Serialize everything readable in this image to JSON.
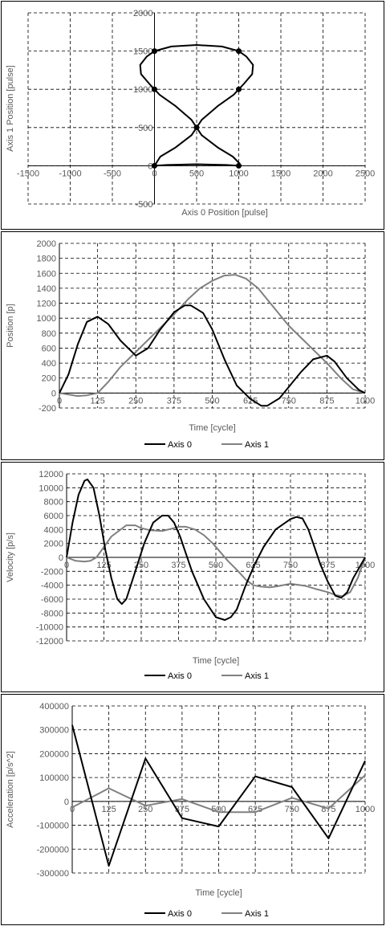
{
  "chart_data": [
    {
      "type": "scatter",
      "xlabel": "Axis 0 Position [pulse]",
      "ylabel": "Axis 1 Position [pulse]",
      "xlim": [
        -1500,
        2500
      ],
      "ylim": [
        -500,
        2000
      ],
      "xticks": [
        -1500,
        -1000,
        -500,
        0,
        500,
        1000,
        1500,
        2000,
        2500
      ],
      "yticks": [
        -500,
        0,
        500,
        1000,
        1500,
        2000
      ],
      "grid": true,
      "points": [
        [
          0,
          0
        ],
        [
          1000,
          0
        ],
        [
          500,
          500
        ],
        [
          0,
          1000
        ],
        [
          1000,
          1000
        ],
        [
          0,
          1500
        ],
        [
          1000,
          1500
        ]
      ],
      "path": [
        [
          0,
          0
        ],
        [
          150,
          10
        ],
        [
          500,
          20
        ],
        [
          850,
          10
        ],
        [
          1000,
          0
        ],
        [
          1010,
          30
        ],
        [
          930,
          120
        ],
        [
          750,
          240
        ],
        [
          560,
          400
        ],
        [
          500,
          500
        ],
        [
          440,
          600
        ],
        [
          250,
          780
        ],
        [
          60,
          930
        ],
        [
          0,
          1000
        ],
        [
          -60,
          1070
        ],
        [
          -160,
          1200
        ],
        [
          -170,
          1320
        ],
        [
          -90,
          1430
        ],
        [
          0,
          1500
        ],
        [
          200,
          1560
        ],
        [
          500,
          1580
        ],
        [
          800,
          1560
        ],
        [
          1000,
          1500
        ],
        [
          1090,
          1430
        ],
        [
          1170,
          1320
        ],
        [
          1160,
          1200
        ],
        [
          1060,
          1070
        ],
        [
          1000,
          1000
        ],
        [
          940,
          930
        ],
        [
          750,
          780
        ],
        [
          560,
          600
        ],
        [
          500,
          500
        ],
        [
          440,
          400
        ],
        [
          250,
          240
        ],
        [
          70,
          120
        ],
        [
          0,
          0
        ]
      ]
    },
    {
      "type": "line",
      "xlabel": "Time [cycle]",
      "ylabel": "Position [p]",
      "xlim": [
        0,
        1000
      ],
      "ylim": [
        -200,
        2000
      ],
      "xticks": [
        0,
        125,
        250,
        375,
        500,
        625,
        750,
        875,
        1000
      ],
      "yticks": [
        -200,
        0,
        200,
        400,
        600,
        800,
        1000,
        1200,
        1400,
        1600,
        1800,
        2000
      ],
      "grid": true,
      "legend": "bottom",
      "series": [
        {
          "name": "Axis 0",
          "color": "#000000",
          "x": [
            0,
            30,
            60,
            90,
            125,
            160,
            200,
            250,
            290,
            330,
            375,
            410,
            430,
            470,
            500,
            540,
            580,
            625,
            660,
            680,
            720,
            750,
            790,
            830,
            875,
            900,
            940,
            980,
            1000
          ],
          "y": [
            0,
            250,
            650,
            950,
            1020,
            920,
            700,
            500,
            600,
            850,
            1080,
            1170,
            1170,
            1070,
            850,
            450,
            100,
            -80,
            -170,
            -170,
            -70,
            80,
            280,
            450,
            500,
            420,
            200,
            40,
            0
          ]
        },
        {
          "name": "Axis 1",
          "color": "#808080",
          "x": [
            0,
            30,
            60,
            90,
            125,
            160,
            200,
            250,
            300,
            350,
            375,
            420,
            460,
            500,
            540,
            575,
            610,
            650,
            700,
            750,
            800,
            875,
            920,
            960,
            1000
          ],
          "y": [
            0,
            -20,
            -40,
            -30,
            0,
            150,
            350,
            550,
            750,
            950,
            1050,
            1250,
            1400,
            1500,
            1570,
            1580,
            1530,
            1400,
            1150,
            900,
            700,
            400,
            200,
            50,
            0
          ]
        }
      ]
    },
    {
      "type": "line",
      "xlabel": "Time [cycle]",
      "ylabel": "Velocity [p/s]",
      "xlim": [
        0,
        1000
      ],
      "ylim": [
        -12000,
        12000
      ],
      "xticks": [
        0,
        125,
        250,
        375,
        500,
        625,
        750,
        875,
        1000
      ],
      "yticks": [
        -12000,
        -10000,
        -8000,
        -6000,
        -4000,
        -2000,
        0,
        2000,
        4000,
        6000,
        8000,
        10000,
        12000
      ],
      "grid": true,
      "legend": "bottom",
      "series": [
        {
          "name": "Axis 0",
          "color": "#000000",
          "x": [
            0,
            20,
            40,
            60,
            70,
            90,
            110,
            130,
            150,
            170,
            185,
            200,
            230,
            260,
            290,
            320,
            340,
            360,
            380,
            420,
            460,
            500,
            530,
            550,
            570,
            600,
            630,
            660,
            700,
            750,
            770,
            790,
            810,
            830,
            850,
            875,
            900,
            920,
            940,
            960,
            1000
          ],
          "y": [
            0,
            5000,
            9000,
            11000,
            11200,
            10000,
            6000,
            1000,
            -3000,
            -6000,
            -6700,
            -6000,
            -2000,
            2000,
            5000,
            6000,
            6000,
            5000,
            3000,
            -2000,
            -6000,
            -8600,
            -9000,
            -8600,
            -7500,
            -4000,
            -1000,
            1500,
            4000,
            5500,
            5800,
            5600,
            4000,
            1500,
            -1000,
            -3500,
            -5500,
            -5800,
            -5000,
            -3000,
            0
          ]
        },
        {
          "name": "Axis 1",
          "color": "#808080",
          "x": [
            0,
            30,
            60,
            80,
            100,
            125,
            150,
            200,
            230,
            250,
            280,
            320,
            360,
            375,
            400,
            430,
            460,
            490,
            510,
            540,
            575,
            600,
            625,
            650,
            680,
            700,
            750,
            800,
            840,
            875,
            900,
            925,
            950,
            975,
            1000
          ],
          "y": [
            0,
            -500,
            -600,
            -500,
            0,
            1500,
            3000,
            4600,
            4600,
            4200,
            3900,
            3800,
            4200,
            4400,
            4400,
            4000,
            3200,
            2000,
            1000,
            -500,
            -2000,
            -3200,
            -4000,
            -4200,
            -4300,
            -4200,
            -3800,
            -4100,
            -4600,
            -5000,
            -5400,
            -5600,
            -5000,
            -3000,
            0
          ]
        }
      ]
    },
    {
      "type": "line",
      "xlabel": "Time [cycle]",
      "ylabel": "Acceleration [p/s^2]",
      "xlim": [
        0,
        1000
      ],
      "ylim": [
        -300000,
        400000
      ],
      "xticks": [
        0,
        125,
        250,
        375,
        500,
        625,
        750,
        875,
        1000
      ],
      "yticks": [
        -300000,
        -200000,
        -100000,
        0,
        100000,
        200000,
        300000,
        400000
      ],
      "grid": true,
      "legend": "bottom",
      "series": [
        {
          "name": "Axis 0",
          "color": "#000000",
          "x": [
            0,
            125,
            250,
            375,
            500,
            625,
            750,
            875,
            1000
          ],
          "y": [
            320000,
            -270000,
            180000,
            -70000,
            -105000,
            105000,
            60000,
            -155000,
            170000
          ]
        },
        {
          "name": "Axis 1",
          "color": "#808080",
          "x": [
            0,
            125,
            250,
            375,
            500,
            625,
            750,
            875,
            1000
          ],
          "y": [
            -25000,
            55000,
            -18000,
            10000,
            -45000,
            -45000,
            15000,
            -30000,
            110000
          ]
        }
      ]
    }
  ]
}
